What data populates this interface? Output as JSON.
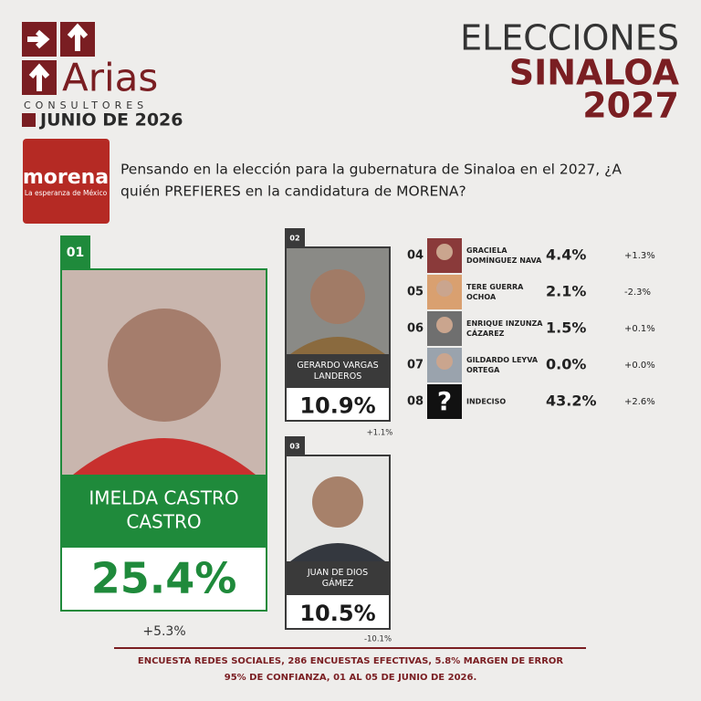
{
  "header": {
    "brand": "Arias",
    "brand_sub": "CONSULTORES",
    "date": "JUNIO DE 2026",
    "title_lines": [
      "ELECCIONES",
      "SINALOA",
      "2027"
    ]
  },
  "party": {
    "name": "morena",
    "tagline": "La esperanza de México"
  },
  "question_lines": [
    "Pensando en la elección para la gubernatura de Sinaloa en el 2027,  ¿A",
    "quién PREFIERES en la candidatura de MORENA?"
  ],
  "candidates": [
    {
      "rank": "01",
      "name_lines": [
        "IMELDA CASTRO",
        "CASTRO"
      ],
      "value": "25.4%",
      "change": "+5.3%"
    },
    {
      "rank": "02",
      "name_lines": [
        "GERARDO VARGAS",
        "LANDEROS"
      ],
      "value": "10.9%",
      "change": "+1.1%"
    },
    {
      "rank": "03",
      "name_lines": [
        "JUAN DE DIOS",
        "GÁMEZ"
      ],
      "value": "10.5%",
      "change": "-10.1%"
    },
    {
      "rank": "04",
      "name_lines": [
        "GRACIELA",
        "DOMÍNGUEZ NAVA"
      ],
      "value": "4.4%",
      "change": "+1.3%"
    },
    {
      "rank": "05",
      "name_lines": [
        "TERE GUERRA",
        "OCHOA"
      ],
      "value": "2.1%",
      "change": "-2.3%"
    },
    {
      "rank": "06",
      "name_lines": [
        "ENRIQUE INZUNZA",
        "CÁZAREZ"
      ],
      "value": "1.5%",
      "change": "+0.1%"
    },
    {
      "rank": "07",
      "name_lines": [
        "GILDARDO LEYVA",
        "ORTEGA"
      ],
      "value": "0.0%",
      "change": "+0.0%"
    },
    {
      "rank": "08",
      "name_lines": [
        "INDECISO"
      ],
      "value": "43.2%",
      "change": "+2.6%",
      "icon": "?"
    }
  ],
  "footer_lines": [
    "ENCUESTA REDES SOCIALES, 286 ENCUESTAS EFECTIVAS, 5.8%  MARGEN DE ERROR",
    "95% DE CONFIANZA, 01 AL 05 DE JUNIO DE 2026."
  ]
}
